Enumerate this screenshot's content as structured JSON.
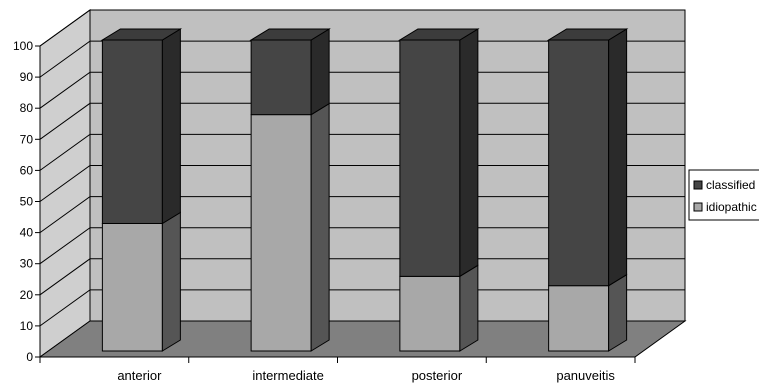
{
  "chart_data": {
    "type": "bar",
    "stacked": true,
    "three_d": true,
    "categories": [
      "anterior",
      "intermediate",
      "posterior",
      "panuveitis"
    ],
    "series": [
      {
        "name": "idiopathic",
        "values": [
          41,
          76,
          24,
          21
        ]
      },
      {
        "name": "classified",
        "values": [
          59,
          24,
          76,
          79
        ]
      }
    ],
    "ylim": [
      0,
      100
    ],
    "yticks": [
      "0",
      "10",
      "20",
      "30",
      "40",
      "50",
      "60",
      "70",
      "80",
      "90",
      "100"
    ],
    "grid": true,
    "legend": "right",
    "colors": {
      "idiopathic_front": "#a8a8a8",
      "idiopathic_side": "#555555",
      "classified_front": "#454545",
      "classified_side": "#2a2a2a",
      "top": "#3c3c3c",
      "back_wall": "#c0c0c0",
      "side_wall": "#cfcfcf",
      "floor": "#808080"
    }
  }
}
